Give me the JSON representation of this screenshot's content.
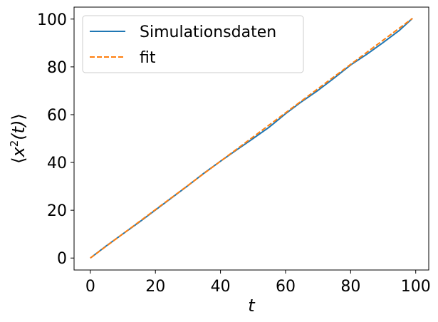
{
  "chart_data": {
    "type": "line",
    "title": "",
    "xlabel": "t",
    "ylabel": "⟨x²(t)⟩",
    "ylabel_parts": {
      "open": "⟨",
      "var": "x",
      "sup": "2",
      "arg": "(t)",
      "close": "⟩"
    },
    "xlim": [
      -5,
      104
    ],
    "ylim": [
      -5,
      105
    ],
    "xticks": [
      0,
      20,
      40,
      60,
      80,
      100
    ],
    "yticks": [
      0,
      20,
      40,
      60,
      80,
      100
    ],
    "xtick_labels": [
      "0",
      "20",
      "40",
      "60",
      "80",
      "100"
    ],
    "ytick_labels": [
      "0",
      "20",
      "40",
      "60",
      "80",
      "100"
    ],
    "grid": false,
    "legend_position": "top-left",
    "series": [
      {
        "name": "Simulationsdaten",
        "color": "#1f77b4",
        "style": "solid",
        "x": [
          0,
          5,
          10,
          15,
          20,
          25,
          30,
          35,
          40,
          45,
          50,
          55,
          60,
          65,
          70,
          75,
          80,
          85,
          90,
          95,
          99
        ],
        "y": [
          0,
          5.2,
          10.1,
          15,
          20.1,
          25.2,
          30.3,
          35.6,
          40.5,
          45.3,
          50,
          54.8,
          60.4,
          65.5,
          70.2,
          75.4,
          80.8,
          85.3,
          90.2,
          95.3,
          100.3
        ]
      },
      {
        "name": "fit",
        "color": "#ff7f0e",
        "style": "dashed",
        "x": [
          0,
          99
        ],
        "y": [
          0,
          100.3
        ]
      }
    ]
  }
}
